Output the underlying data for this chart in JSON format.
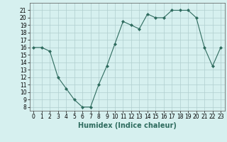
{
  "x": [
    0,
    1,
    2,
    3,
    4,
    5,
    6,
    7,
    8,
    9,
    10,
    11,
    12,
    13,
    14,
    15,
    16,
    17,
    18,
    19,
    20,
    21,
    22,
    23
  ],
  "y": [
    16,
    16,
    15.5,
    12,
    10.5,
    9,
    8,
    8,
    11,
    13.5,
    16.5,
    19.5,
    19,
    18.5,
    20.5,
    20,
    20,
    21,
    21,
    21,
    20,
    16,
    13.5,
    16
  ],
  "line_color": "#2e6b5e",
  "marker": "D",
  "marker_size": 2,
  "xlabel": "Humidex (Indice chaleur)",
  "xlim": [
    -0.5,
    23.5
  ],
  "ylim": [
    7.5,
    22
  ],
  "yticks": [
    8,
    9,
    10,
    11,
    12,
    13,
    14,
    15,
    16,
    17,
    18,
    19,
    20,
    21
  ],
  "xticks": [
    0,
    1,
    2,
    3,
    4,
    5,
    6,
    7,
    8,
    9,
    10,
    11,
    12,
    13,
    14,
    15,
    16,
    17,
    18,
    19,
    20,
    21,
    22,
    23
  ],
  "background_color": "#d6f0ef",
  "grid_color": "#b0cece",
  "label_fontsize": 7,
  "tick_fontsize": 5.5
}
